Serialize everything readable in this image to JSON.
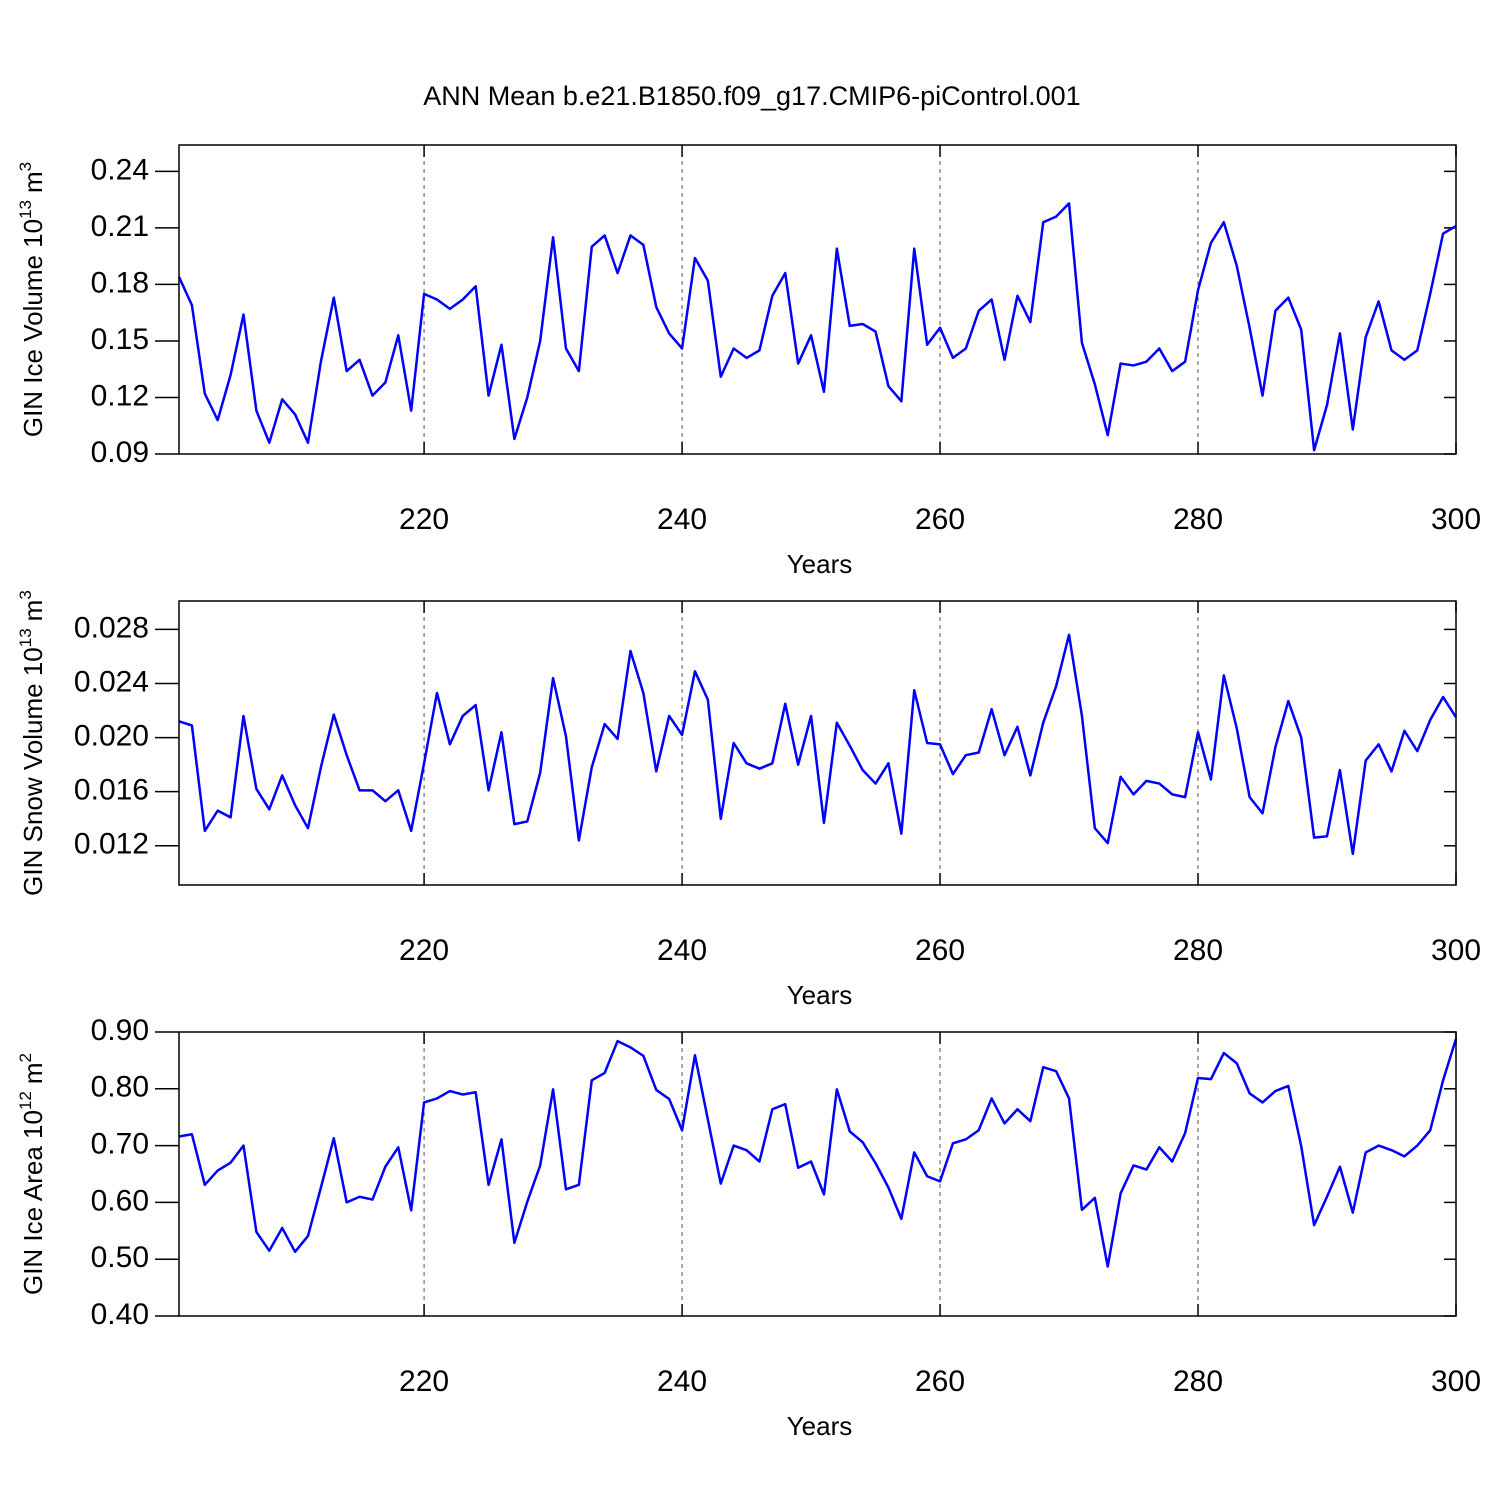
{
  "title": "ANN Mean b.e21.B1850.f09_g17.CMIP6-piControl.001",
  "chart_data": [
    {
      "type": "line",
      "x": [
        201,
        202,
        203,
        204,
        205,
        206,
        207,
        208,
        209,
        210,
        211,
        212,
        213,
        214,
        215,
        216,
        217,
        218,
        219,
        220,
        221,
        222,
        223,
        224,
        225,
        226,
        227,
        228,
        229,
        230,
        231,
        232,
        233,
        234,
        235,
        236,
        237,
        238,
        239,
        240,
        241,
        242,
        243,
        244,
        245,
        246,
        247,
        248,
        249,
        250,
        251,
        252,
        253,
        254,
        255,
        256,
        257,
        258,
        259,
        260,
        261,
        262,
        263,
        264,
        265,
        266,
        267,
        268,
        269,
        270,
        271,
        272,
        273,
        274,
        275,
        276,
        277,
        278,
        279,
        280,
        281,
        282,
        283,
        284,
        285,
        286,
        287,
        288,
        289,
        290,
        291,
        292,
        293,
        294,
        295,
        296,
        297,
        298,
        299,
        300
      ],
      "series": [
        {
          "color": "#0000ff",
          "values": [
            0.184,
            0.169,
            0.122,
            0.108,
            0.132,
            0.164,
            0.113,
            0.096,
            0.119,
            0.111,
            0.096,
            0.139,
            0.173,
            0.134,
            0.14,
            0.121,
            0.128,
            0.153,
            0.113,
            0.175,
            0.172,
            0.167,
            0.172,
            0.179,
            0.121,
            0.148,
            0.098,
            0.12,
            0.15,
            0.205,
            0.146,
            0.134,
            0.2,
            0.206,
            0.186,
            0.206,
            0.201,
            0.168,
            0.154,
            0.146,
            0.194,
            0.182,
            0.131,
            0.146,
            0.141,
            0.145,
            0.174,
            0.186,
            0.138,
            0.153,
            0.123,
            0.199,
            0.158,
            0.159,
            0.155,
            0.126,
            0.118,
            0.199,
            0.148,
            0.157,
            0.141,
            0.146,
            0.166,
            0.172,
            0.14,
            0.174,
            0.16,
            0.213,
            0.216,
            0.223,
            0.149,
            0.127,
            0.1,
            0.138,
            0.137,
            0.139,
            0.146,
            0.134,
            0.139,
            0.177,
            0.202,
            0.213,
            0.19,
            0.157,
            0.121,
            0.166,
            0.173,
            0.156,
            0.092,
            0.116,
            0.154,
            0.103,
            0.152,
            0.171,
            0.145,
            0.14,
            0.145,
            0.175,
            0.207,
            0.211
          ]
        }
      ],
      "xlim": [
        201,
        300
      ],
      "xticks": [
        220,
        240,
        260,
        280,
        300
      ],
      "xlabel": "Years",
      "ylim": [
        0.09,
        0.254
      ],
      "yticks": [
        0.09,
        0.12,
        0.15,
        0.18,
        0.21,
        0.24
      ],
      "ylabel": {
        "text": "GIN Ice Volume 10",
        "exponent": "13",
        "unit": "m",
        "unit_exponent": "3"
      },
      "grid": "x"
    },
    {
      "type": "line",
      "x": [
        201,
        202,
        203,
        204,
        205,
        206,
        207,
        208,
        209,
        210,
        211,
        212,
        213,
        214,
        215,
        216,
        217,
        218,
        219,
        220,
        221,
        222,
        223,
        224,
        225,
        226,
        227,
        228,
        229,
        230,
        231,
        232,
        233,
        234,
        235,
        236,
        237,
        238,
        239,
        240,
        241,
        242,
        243,
        244,
        245,
        246,
        247,
        248,
        249,
        250,
        251,
        252,
        253,
        254,
        255,
        256,
        257,
        258,
        259,
        260,
        261,
        262,
        263,
        264,
        265,
        266,
        267,
        268,
        269,
        270,
        271,
        272,
        273,
        274,
        275,
        276,
        277,
        278,
        279,
        280,
        281,
        282,
        283,
        284,
        285,
        286,
        287,
        288,
        289,
        290,
        291,
        292,
        293,
        294,
        295,
        296,
        297,
        298,
        299,
        300
      ],
      "series": [
        {
          "color": "#0000ff",
          "values": [
            0.0212,
            0.0209,
            0.0131,
            0.0146,
            0.0141,
            0.0216,
            0.0162,
            0.0147,
            0.0172,
            0.015,
            0.0133,
            0.0178,
            0.0217,
            0.0187,
            0.0161,
            0.0161,
            0.0153,
            0.0161,
            0.0131,
            0.0181,
            0.0233,
            0.0195,
            0.0216,
            0.0224,
            0.0161,
            0.0204,
            0.0136,
            0.0138,
            0.0174,
            0.0244,
            0.0201,
            0.0124,
            0.0178,
            0.021,
            0.0199,
            0.0264,
            0.0233,
            0.0175,
            0.0216,
            0.0202,
            0.0249,
            0.0228,
            0.014,
            0.0196,
            0.0181,
            0.0177,
            0.0181,
            0.0225,
            0.018,
            0.0216,
            0.0137,
            0.0211,
            0.0194,
            0.0176,
            0.0166,
            0.0181,
            0.0129,
            0.0235,
            0.0196,
            0.0195,
            0.0173,
            0.0187,
            0.0189,
            0.0221,
            0.0187,
            0.0208,
            0.0172,
            0.0211,
            0.0238,
            0.0276,
            0.0216,
            0.0133,
            0.0122,
            0.0171,
            0.0158,
            0.0168,
            0.0166,
            0.0158,
            0.0156,
            0.0204,
            0.0169,
            0.0246,
            0.0207,
            0.0156,
            0.0144,
            0.0193,
            0.0227,
            0.02,
            0.0126,
            0.0127,
            0.0176,
            0.0114,
            0.0183,
            0.0195,
            0.0175,
            0.0205,
            0.019,
            0.0213,
            0.023,
            0.0215
          ]
        }
      ],
      "xlim": [
        201,
        300
      ],
      "xticks": [
        220,
        240,
        260,
        280,
        300
      ],
      "xlabel": "Years",
      "ylim": [
        0.0091,
        0.0301
      ],
      "yticks": [
        0.012,
        0.016,
        {
          "value": 0.02,
          "label": "0.020"
        },
        0.024,
        0.028
      ],
      "ylabel": {
        "text": "GIN Snow Volume 10",
        "exponent": "13",
        "unit": "m",
        "unit_exponent": "3"
      },
      "grid": "x"
    },
    {
      "type": "line",
      "x": [
        201,
        202,
        203,
        204,
        205,
        206,
        207,
        208,
        209,
        210,
        211,
        212,
        213,
        214,
        215,
        216,
        217,
        218,
        219,
        220,
        221,
        222,
        223,
        224,
        225,
        226,
        227,
        228,
        229,
        230,
        231,
        232,
        233,
        234,
        235,
        236,
        237,
        238,
        239,
        240,
        241,
        242,
        243,
        244,
        245,
        246,
        247,
        248,
        249,
        250,
        251,
        252,
        253,
        254,
        255,
        256,
        257,
        258,
        259,
        260,
        261,
        262,
        263,
        264,
        265,
        266,
        267,
        268,
        269,
        270,
        271,
        272,
        273,
        274,
        275,
        276,
        277,
        278,
        279,
        280,
        281,
        282,
        283,
        284,
        285,
        286,
        287,
        288,
        289,
        290,
        291,
        292,
        293,
        294,
        295,
        296,
        297,
        298,
        299,
        300
      ],
      "series": [
        {
          "color": "#0000ff",
          "values": [
            0.716,
            0.72,
            0.631,
            0.656,
            0.67,
            0.7,
            0.548,
            0.515,
            0.555,
            0.513,
            0.541,
            0.626,
            0.713,
            0.6,
            0.61,
            0.605,
            0.663,
            0.697,
            0.586,
            0.776,
            0.783,
            0.796,
            0.79,
            0.794,
            0.631,
            0.711,
            0.529,
            0.601,
            0.665,
            0.799,
            0.623,
            0.631,
            0.815,
            0.828,
            0.884,
            0.873,
            0.858,
            0.798,
            0.782,
            0.727,
            0.859,
            0.746,
            0.633,
            0.7,
            0.692,
            0.672,
            0.764,
            0.773,
            0.661,
            0.672,
            0.614,
            0.799,
            0.725,
            0.706,
            0.669,
            0.626,
            0.571,
            0.688,
            0.646,
            0.637,
            0.704,
            0.711,
            0.727,
            0.783,
            0.739,
            0.764,
            0.743,
            0.838,
            0.831,
            0.783,
            0.587,
            0.608,
            0.487,
            0.616,
            0.665,
            0.658,
            0.697,
            0.672,
            0.722,
            0.819,
            0.817,
            0.863,
            0.845,
            0.792,
            0.776,
            0.796,
            0.805,
            0.699,
            0.56,
            0.61,
            0.663,
            0.582,
            0.688,
            0.7,
            0.692,
            0.681,
            0.7,
            0.727,
            0.815,
            0.888
          ]
        }
      ],
      "xlim": [
        201,
        300
      ],
      "xticks": [
        220,
        240,
        260,
        280,
        300
      ],
      "xlabel": "Years",
      "ylim": [
        0.4,
        0.9
      ],
      "yticks": [
        {
          "value": 0.4,
          "label": "0.40"
        },
        {
          "value": 0.5,
          "label": "0.50"
        },
        {
          "value": 0.6,
          "label": "0.60"
        },
        {
          "value": 0.7,
          "label": "0.70"
        },
        {
          "value": 0.8,
          "label": "0.80"
        },
        {
          "value": 0.9,
          "label": "0.90"
        }
      ],
      "ylabel": {
        "text": "GIN Ice Area 10",
        "exponent": "12",
        "unit": "m",
        "unit_exponent": "2"
      },
      "grid": "x"
    }
  ]
}
